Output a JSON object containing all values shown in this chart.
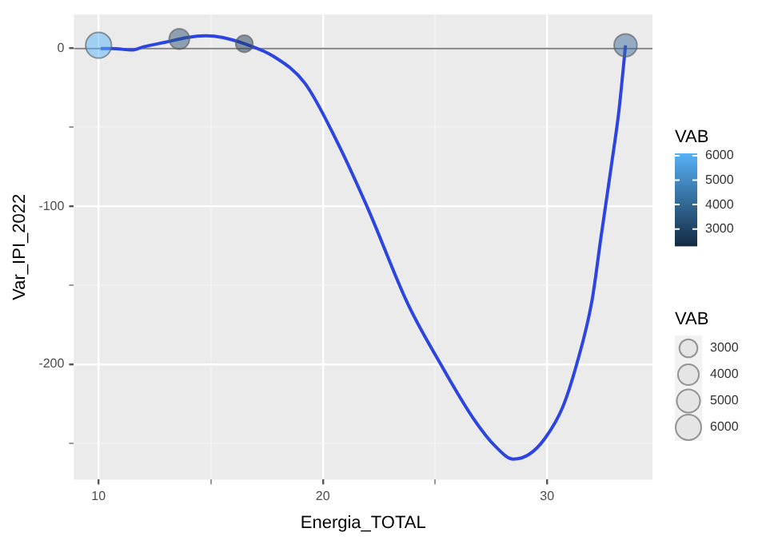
{
  "chart_data": {
    "type": "bubble",
    "xlabel": "Energia_TOTAL",
    "ylabel": "Var_IPI_2022",
    "clabel": "VAB",
    "legend_title": "VAB",
    "xlim": [
      8.9,
      34.7
    ],
    "ylim": [
      -273,
      21.5
    ],
    "xticks": [
      10,
      {
        "value": 15,
        "label": null
      },
      20,
      {
        "value": 25,
        "label": null
      },
      30
    ],
    "yticks": [
      {
        "value": -250,
        "label": null
      },
      -200,
      {
        "value": -150,
        "label": null
      },
      -100,
      {
        "value": -50,
        "label": null
      },
      0
    ],
    "clim": [
      2300,
      6100
    ],
    "cticks": [
      3000,
      4000,
      5000,
      6000
    ],
    "size_legend": [
      3000,
      4000,
      5000,
      6000
    ],
    "grid": true,
    "ref_lines": [
      {
        "axis": "y",
        "value": 0,
        "color": "#808080"
      }
    ],
    "series": [
      {
        "type": "line",
        "color": "#2d45e0",
        "x": [
          10.1,
          10.6,
          11.5,
          12.0,
          13.0,
          14.0,
          14.8,
          15.5,
          16.5,
          17.8,
          19.2,
          20.6,
          22.0,
          23.8,
          25.3,
          26.7,
          27.7,
          28.5,
          29.2,
          29.9,
          30.7,
          31.3,
          32.0,
          32.4,
          32.9,
          33.2,
          33.5
        ],
        "values": [
          0,
          0,
          -1,
          1,
          4,
          7,
          8,
          7,
          3,
          -5,
          -22,
          -58,
          -101,
          -162,
          -201,
          -234,
          -252,
          -260,
          -257,
          -247,
          -227,
          -201,
          -160,
          -120,
          -71,
          -40,
          2
        ]
      },
      {
        "x": [
          10.0,
          13.6,
          16.5,
          33.5
        ],
        "values": [
          2,
          6,
          3,
          2
        ],
        "sizes": [
          6100,
          3800,
          2700,
          4800
        ],
        "colors": [
          "#58b3fa",
          "#2e5578",
          "#203c59",
          "#3b6d9b"
        ]
      }
    ]
  }
}
